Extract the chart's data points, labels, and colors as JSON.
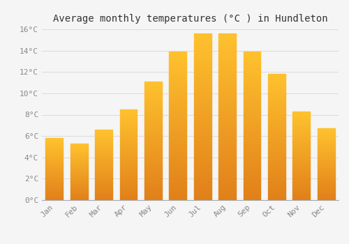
{
  "title": "Average monthly temperatures (°C ) in Hundleton",
  "months": [
    "Jan",
    "Feb",
    "Mar",
    "Apr",
    "May",
    "Jun",
    "Jul",
    "Aug",
    "Sep",
    "Oct",
    "Nov",
    "Dec"
  ],
  "values": [
    5.8,
    5.3,
    6.6,
    8.5,
    11.1,
    13.9,
    15.6,
    15.6,
    13.9,
    11.8,
    8.3,
    6.7
  ],
  "bar_color_top": "#FFC020",
  "bar_color_bottom": "#E08000",
  "background_color": "#F5F5F5",
  "plot_bg_color": "#F5F5F5",
  "grid_color": "#DDDDDD",
  "ylim": [
    0,
    16
  ],
  "yticks": [
    0,
    2,
    4,
    6,
    8,
    10,
    12,
    14,
    16
  ],
  "title_fontsize": 10,
  "tick_fontsize": 8,
  "tick_color": "#888888",
  "bar_width": 0.7
}
